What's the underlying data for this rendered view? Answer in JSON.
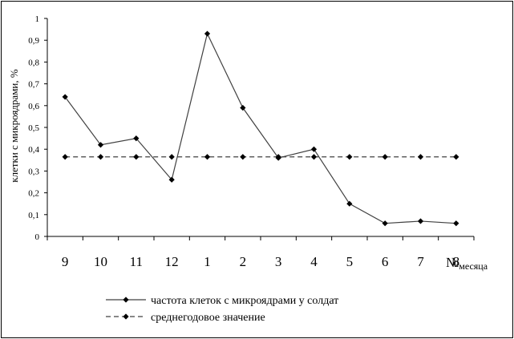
{
  "chart_data": {
    "type": "line",
    "categories": [
      "9",
      "10",
      "11",
      "12",
      "1",
      "2",
      "3",
      "4",
      "5",
      "6",
      "7",
      "8"
    ],
    "series": [
      {
        "name": "частота клеток с микроядрами у солдат",
        "values": [
          0.64,
          0.42,
          0.45,
          0.26,
          0.93,
          0.59,
          0.36,
          0.4,
          0.15,
          0.06,
          0.07,
          0.06
        ],
        "style": "solid",
        "color": "#404040"
      },
      {
        "name": "среднегодовое значение",
        "values": [
          0.365,
          0.365,
          0.365,
          0.365,
          0.365,
          0.365,
          0.365,
          0.365,
          0.365,
          0.365,
          0.365,
          0.365
        ],
        "style": "dashed",
        "color": "#404040"
      }
    ],
    "ylabel": "клетки с микроядрами, %",
    "xlabel_main": "№",
    "xlabel_sub": "месяца",
    "ylim": [
      0,
      1
    ],
    "yticks": [
      "0",
      "0,1",
      "0,2",
      "0,3",
      "0,4",
      "0,5",
      "0,6",
      "0,7",
      "0,8",
      "0,9",
      "1"
    ],
    "grid": false,
    "legend": "bottom"
  }
}
